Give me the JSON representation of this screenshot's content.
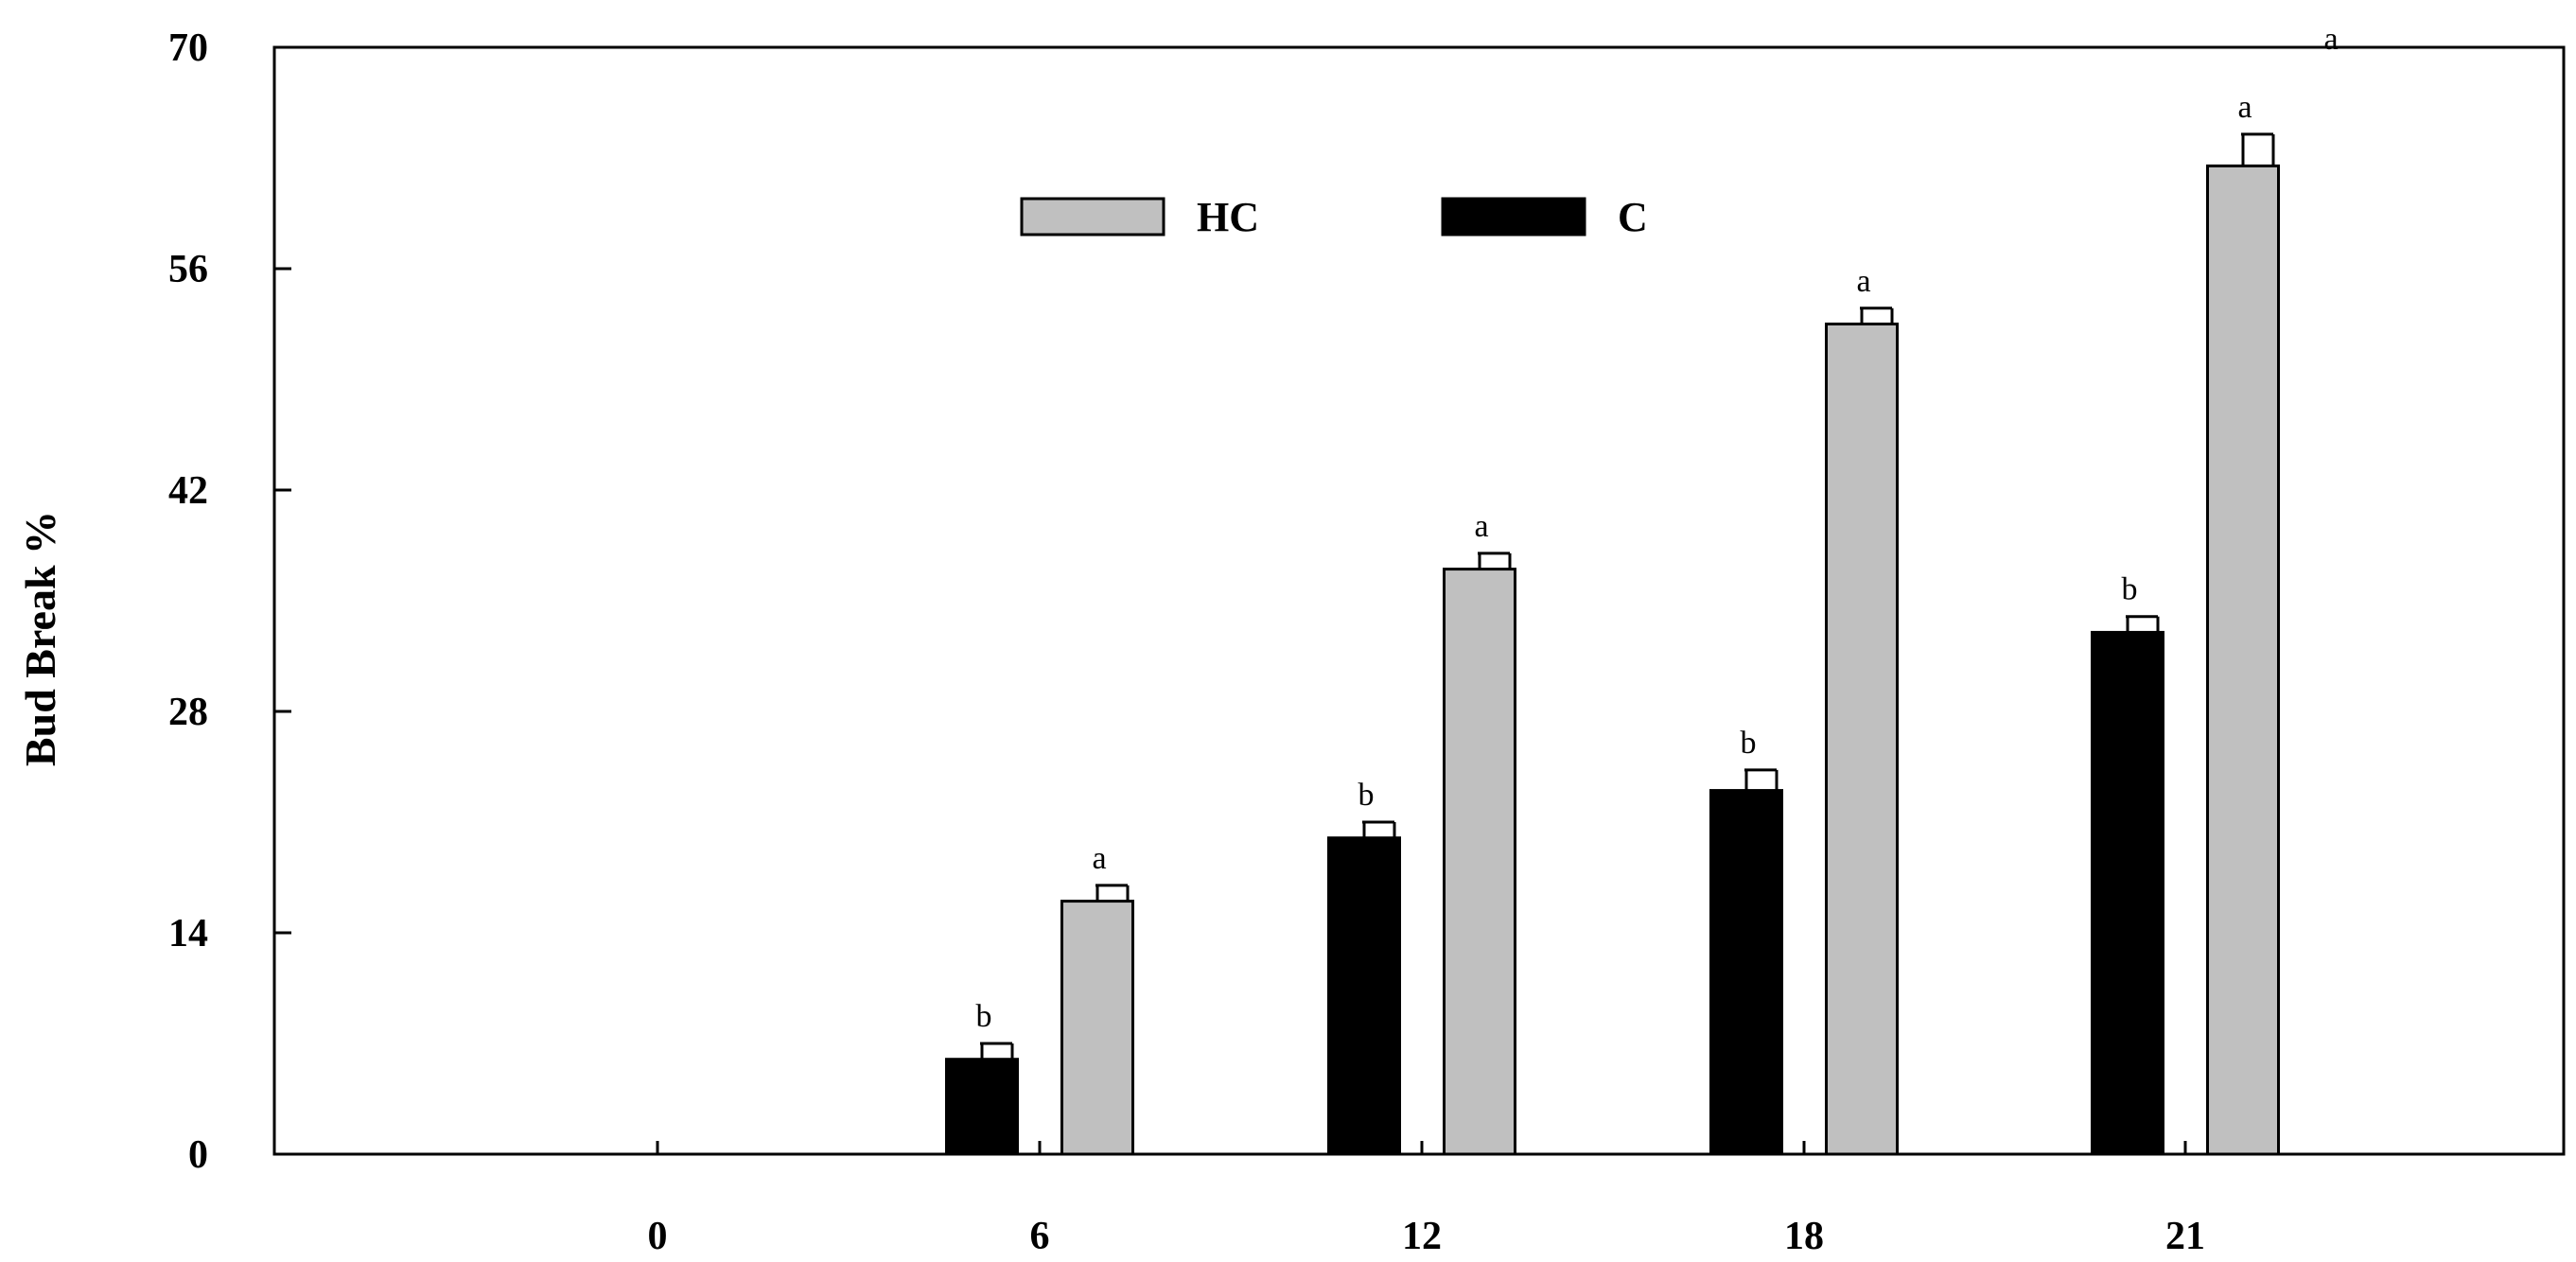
{
  "chart_data": {
    "type": "bar",
    "ylabel": "Bud Break %",
    "xlabel": "",
    "ylim": [
      0,
      70
    ],
    "yticks": [
      0,
      14,
      28,
      42,
      56,
      70
    ],
    "categories": [
      "0",
      "6",
      "12",
      "18",
      "21"
    ],
    "grid": false,
    "legend_position": "top",
    "series": [
      {
        "name": "C",
        "color": "#000000",
        "values": [
          0,
          6,
          20,
          23,
          33
        ],
        "errors": [
          0,
          1,
          1,
          1.3,
          1
        ],
        "labels": [
          "",
          "b",
          "b",
          "b",
          "b"
        ]
      },
      {
        "name": "HC",
        "color": "#c0c0c0",
        "values": [
          0,
          16,
          37,
          52.5,
          62.5
        ],
        "errors": [
          0,
          1,
          1,
          1,
          2
        ],
        "labels": [
          "",
          "a",
          "a",
          "a",
          "a"
        ]
      }
    ],
    "annotations": [
      "a"
    ]
  }
}
